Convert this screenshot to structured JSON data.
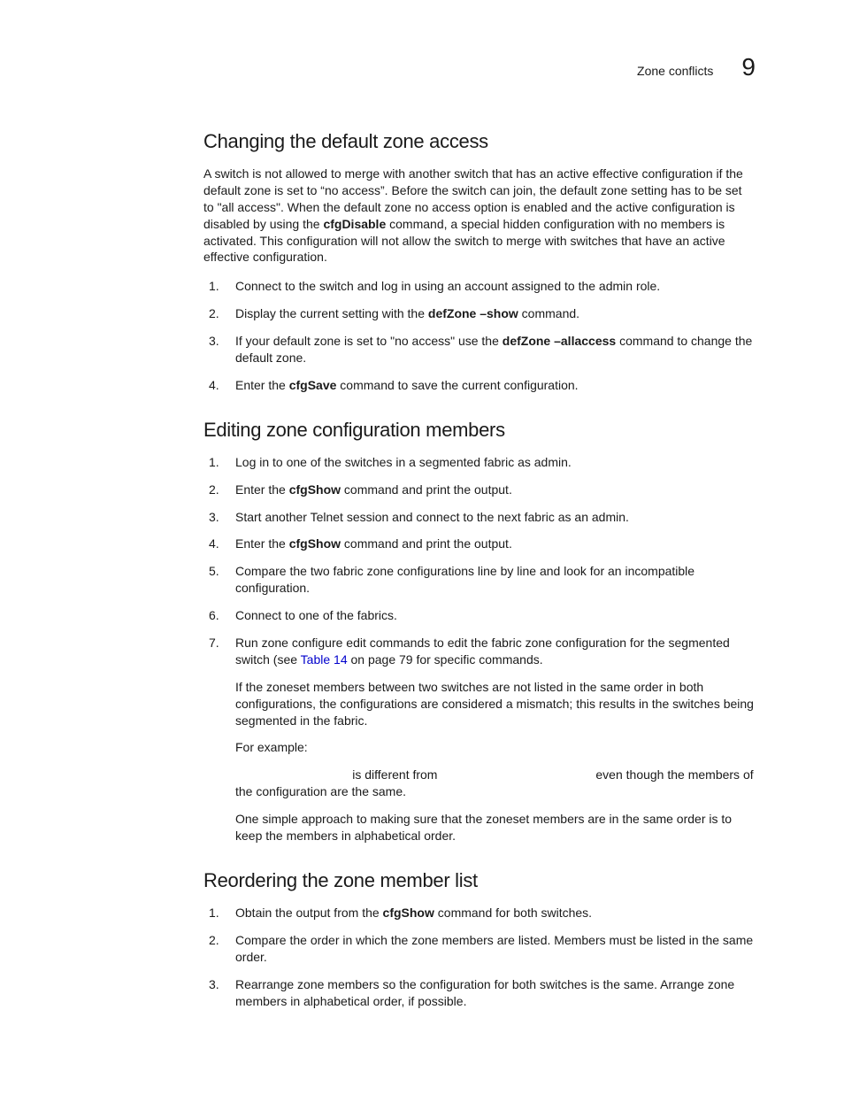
{
  "header": {
    "subtitle": "Zone conflicts",
    "chapter_number": "9"
  },
  "section1": {
    "title": "Changing the default zone access",
    "intro_parts": [
      "A switch is not allowed to merge with another switch that has an active effective configuration if the default zone is set to “no access”. Before the switch can join, the default zone setting has to be set to \"all access\". When the default zone no access option is enabled and the active configuration is disabled by using the ",
      "cfgDisable",
      " command, a special hidden configuration with no members is activated. This configuration will not allow the switch to merge with switches that have an active effective configuration."
    ],
    "steps": [
      {
        "parts": [
          "Connect to the switch and log in using an account assigned to the admin role."
        ]
      },
      {
        "parts": [
          "Display the current setting with the ",
          "defZone –show",
          " command."
        ]
      },
      {
        "parts": [
          "If your default zone is set to \"no access\" use the ",
          "defZone –allaccess",
          " command to change the default zone."
        ]
      },
      {
        "parts": [
          "Enter the ",
          "cfgSave",
          " command to save the current configuration."
        ]
      }
    ]
  },
  "section2": {
    "title": "Editing zone configuration members",
    "steps": [
      {
        "parts": [
          "Log in to one of the switches in a segmented fabric as admin."
        ]
      },
      {
        "parts": [
          "Enter the ",
          "cfgShow",
          " command and print the output."
        ]
      },
      {
        "parts": [
          "Start another Telnet session and connect to the next fabric as an admin."
        ]
      },
      {
        "parts": [
          "Enter the ",
          "cfgShow",
          " command and print the output."
        ]
      },
      {
        "parts": [
          "Compare the two fabric zone configurations line by line and look for an incompatible configuration."
        ]
      },
      {
        "parts": [
          "Connect to one of the fabrics."
        ]
      },
      {
        "parts": [
          "Run zone configure edit commands to edit the fabric zone configuration for the segmented switch (see "
        ],
        "link_text": "Table 14",
        "after_link": " on page 79 for specific commands.",
        "sub_paragraphs": [
          "If the zoneset members between two switches are not listed in the same order in both configurations, the configurations are considered a mismatch; this results in the switches being segmented in the fabric.",
          "For example:",
          "                                  is different from                                              even though the members of the configuration are the same.",
          "One simple approach to making sure that the zoneset members are in the same order is to keep the members in alphabetical order."
        ]
      }
    ]
  },
  "section3": {
    "title": "Reordering the zone member list",
    "steps": [
      {
        "parts": [
          "Obtain the output from the ",
          "cfgShow",
          " command for both switches."
        ]
      },
      {
        "parts": [
          "Compare the order in which the zone members are listed. Members must be listed in the same order."
        ]
      },
      {
        "parts": [
          "Rearrange zone members so the configuration for both switches is the same. Arrange zone members in alphabetical order, if possible."
        ]
      }
    ]
  },
  "colors": {
    "text": "#1a1a1a",
    "link": "#0000cc",
    "background": "#ffffff"
  }
}
